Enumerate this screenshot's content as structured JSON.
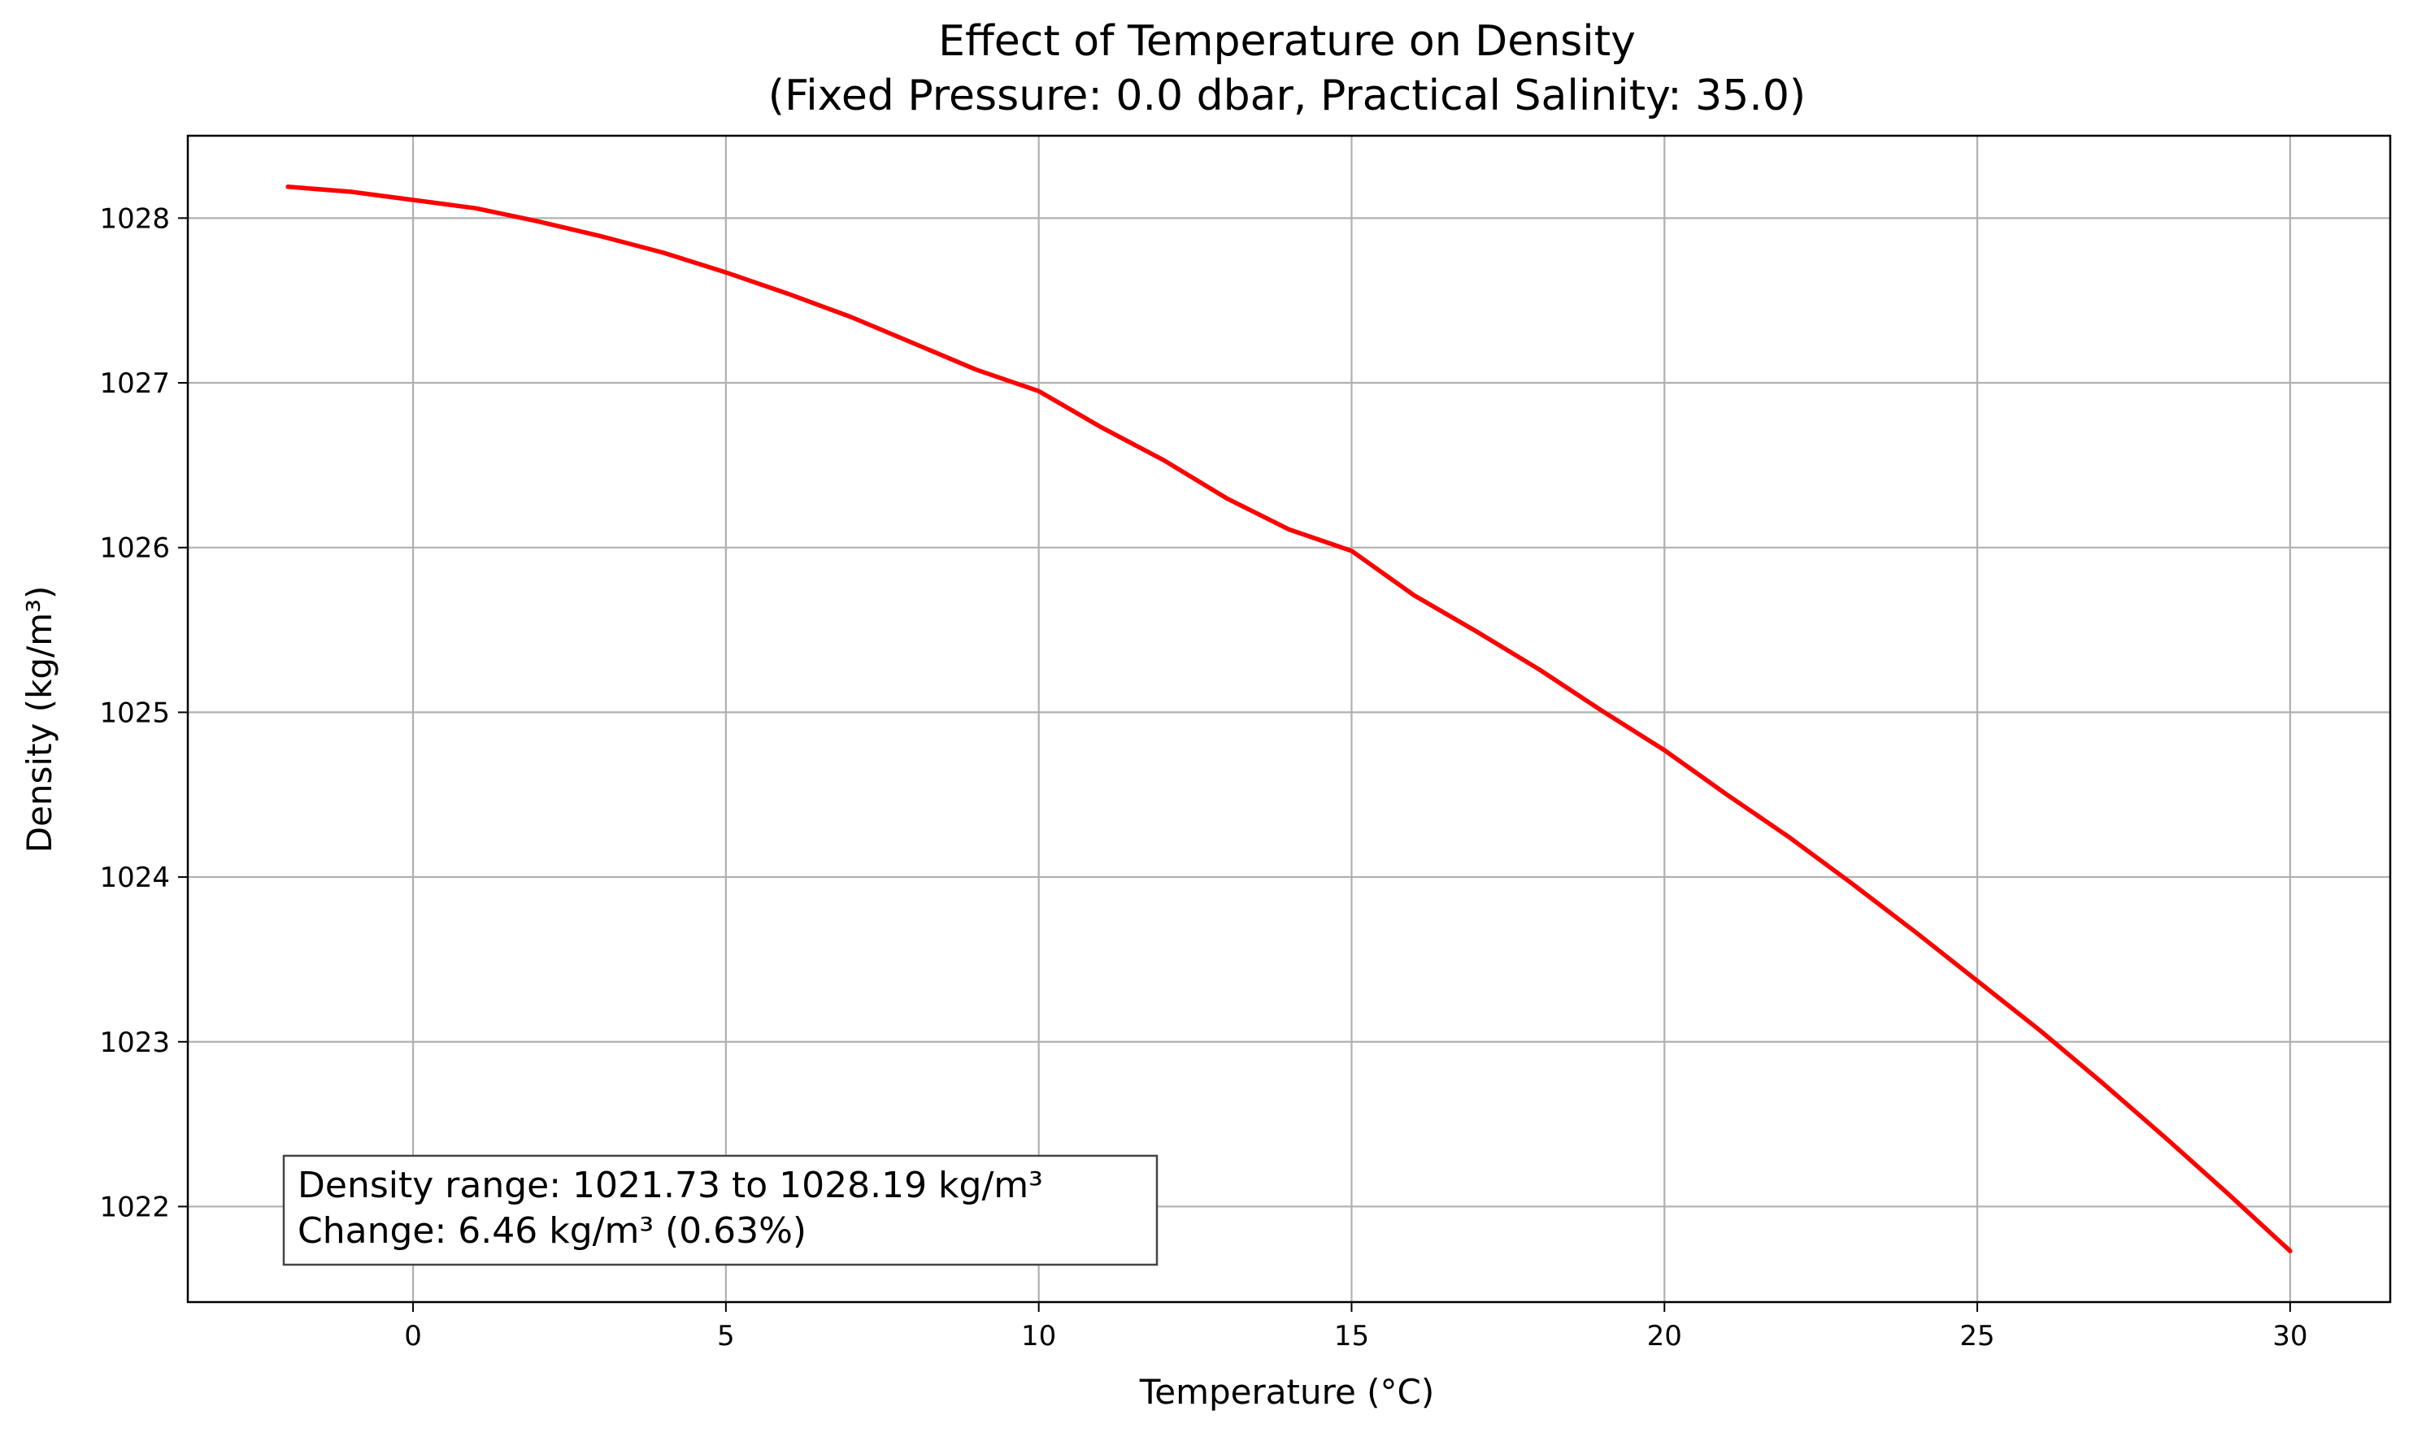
{
  "chart_data": {
    "type": "line",
    "title_line1": "Effect of Temperature on Density",
    "title_line2": "(Fixed Pressure: 0.0 dbar, Practical Salinity: 35.0)",
    "xlabel": "Temperature (°C)",
    "ylabel": "Density (kg/m³)",
    "xlim": [
      -3.6,
      31.6
    ],
    "ylim": [
      1021.42,
      1028.5
    ],
    "xticks": [
      0,
      5,
      10,
      15,
      20,
      25,
      30
    ],
    "yticks": [
      1022,
      1023,
      1024,
      1025,
      1026,
      1027,
      1028
    ],
    "grid": true,
    "series": [
      {
        "color": "#ff0000",
        "x": [
          -2,
          -1,
          0,
          1,
          2,
          3,
          4,
          5,
          6,
          7,
          8,
          9,
          10,
          11,
          12,
          13,
          14,
          15,
          16,
          17,
          18,
          19,
          20,
          21,
          22,
          23,
          24,
          25,
          26,
          27,
          28,
          29,
          30
        ],
        "y": [
          1028.19,
          1028.16,
          1028.11,
          1028.06,
          1027.98,
          1027.89,
          1027.79,
          1027.67,
          1027.54,
          1027.4,
          1027.24,
          1027.08,
          1026.95,
          1026.73,
          1026.53,
          1026.3,
          1026.11,
          1025.98,
          1025.71,
          1025.49,
          1025.26,
          1025.01,
          1024.77,
          1024.5,
          1024.24,
          1023.96,
          1023.67,
          1023.37,
          1023.07,
          1022.75,
          1022.42,
          1022.08,
          1021.73
        ]
      }
    ],
    "annotation": {
      "line1": "Density range: 1021.73 to 1028.19 kg/m³",
      "line2": "Change: 6.46 kg/m³ (0.63%)",
      "placement": "bottom-left"
    }
  }
}
